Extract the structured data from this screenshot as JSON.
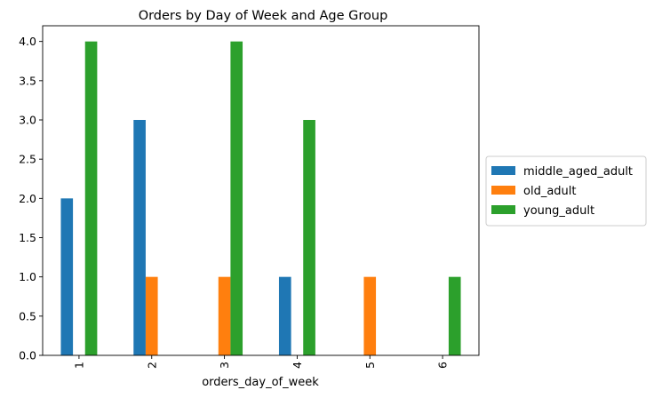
{
  "chart_data": {
    "type": "bar",
    "title": "Orders by Day of Week and Age Group",
    "xlabel": "orders_day_of_week",
    "ylabel": "",
    "categories": [
      "1",
      "2",
      "3",
      "4",
      "5",
      "6"
    ],
    "series": [
      {
        "name": "middle_aged_adult",
        "color": "#1f77b4",
        "values": [
          2,
          3,
          0,
          1,
          0,
          0
        ]
      },
      {
        "name": "old_adult",
        "color": "#ff7f0e",
        "values": [
          0,
          1,
          1,
          0,
          1,
          0
        ]
      },
      {
        "name": "young_adult",
        "color": "#2ca02c",
        "values": [
          4,
          0,
          4,
          3,
          0,
          1
        ]
      }
    ],
    "ylim": [
      0,
      4.2
    ],
    "yticks": [
      "0.0",
      "0.5",
      "1.0",
      "1.5",
      "2.0",
      "2.5",
      "3.0",
      "3.5",
      "4.0"
    ],
    "grid": false,
    "legend_position": "center-right-outside"
  }
}
